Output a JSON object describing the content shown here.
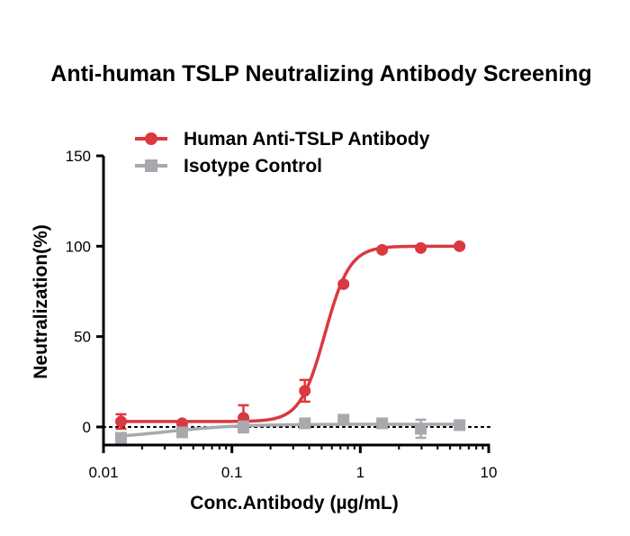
{
  "chart_data": {
    "type": "scatter",
    "title": "Anti-human TSLP Neutralizing Antibody Screening",
    "xlabel": "Conc.Antibody (µg/mL)",
    "ylabel": "Neutralization(%)",
    "x_scale": "log",
    "xlim": [
      0.01,
      10
    ],
    "ylim": [
      -10,
      150
    ],
    "x_ticks": [
      0.01,
      0.1,
      1,
      10
    ],
    "x_tick_labels": [
      "0.01",
      "0.1",
      "1",
      "10"
    ],
    "y_ticks": [
      0,
      50,
      100,
      150
    ],
    "y_tick_labels": [
      "0",
      "50",
      "100",
      "150"
    ],
    "reference_line": {
      "y": 0,
      "style": "dotted"
    },
    "legend_position": "top-left",
    "series": [
      {
        "name": "Human Anti-TSLP Antibody",
        "color": "#d9393f",
        "marker": "circle",
        "x": [
          0.0137,
          0.041,
          0.123,
          0.37,
          0.74,
          1.48,
          2.96,
          5.93
        ],
        "y": [
          3,
          2,
          5,
          20,
          79,
          98,
          99,
          100
        ],
        "error": [
          4,
          1,
          7,
          6,
          1,
          1,
          1,
          1
        ],
        "fit": {
          "bottom": 3,
          "top": 100,
          "ec50": 0.53,
          "hill": 4.5
        }
      },
      {
        "name": "Isotype Control",
        "color": "#a7a9ac",
        "marker": "square",
        "x": [
          0.0137,
          0.041,
          0.123,
          0.37,
          0.74,
          1.48,
          2.96,
          5.93
        ],
        "y": [
          -6,
          -3,
          0,
          2,
          4,
          2,
          -1,
          1
        ],
        "error": [
          1,
          1,
          3,
          1,
          2,
          2,
          5,
          1
        ],
        "fit": {
          "bottom": -7,
          "top": 1.5,
          "ec50": 0.03,
          "hill": 1.5
        }
      }
    ]
  }
}
